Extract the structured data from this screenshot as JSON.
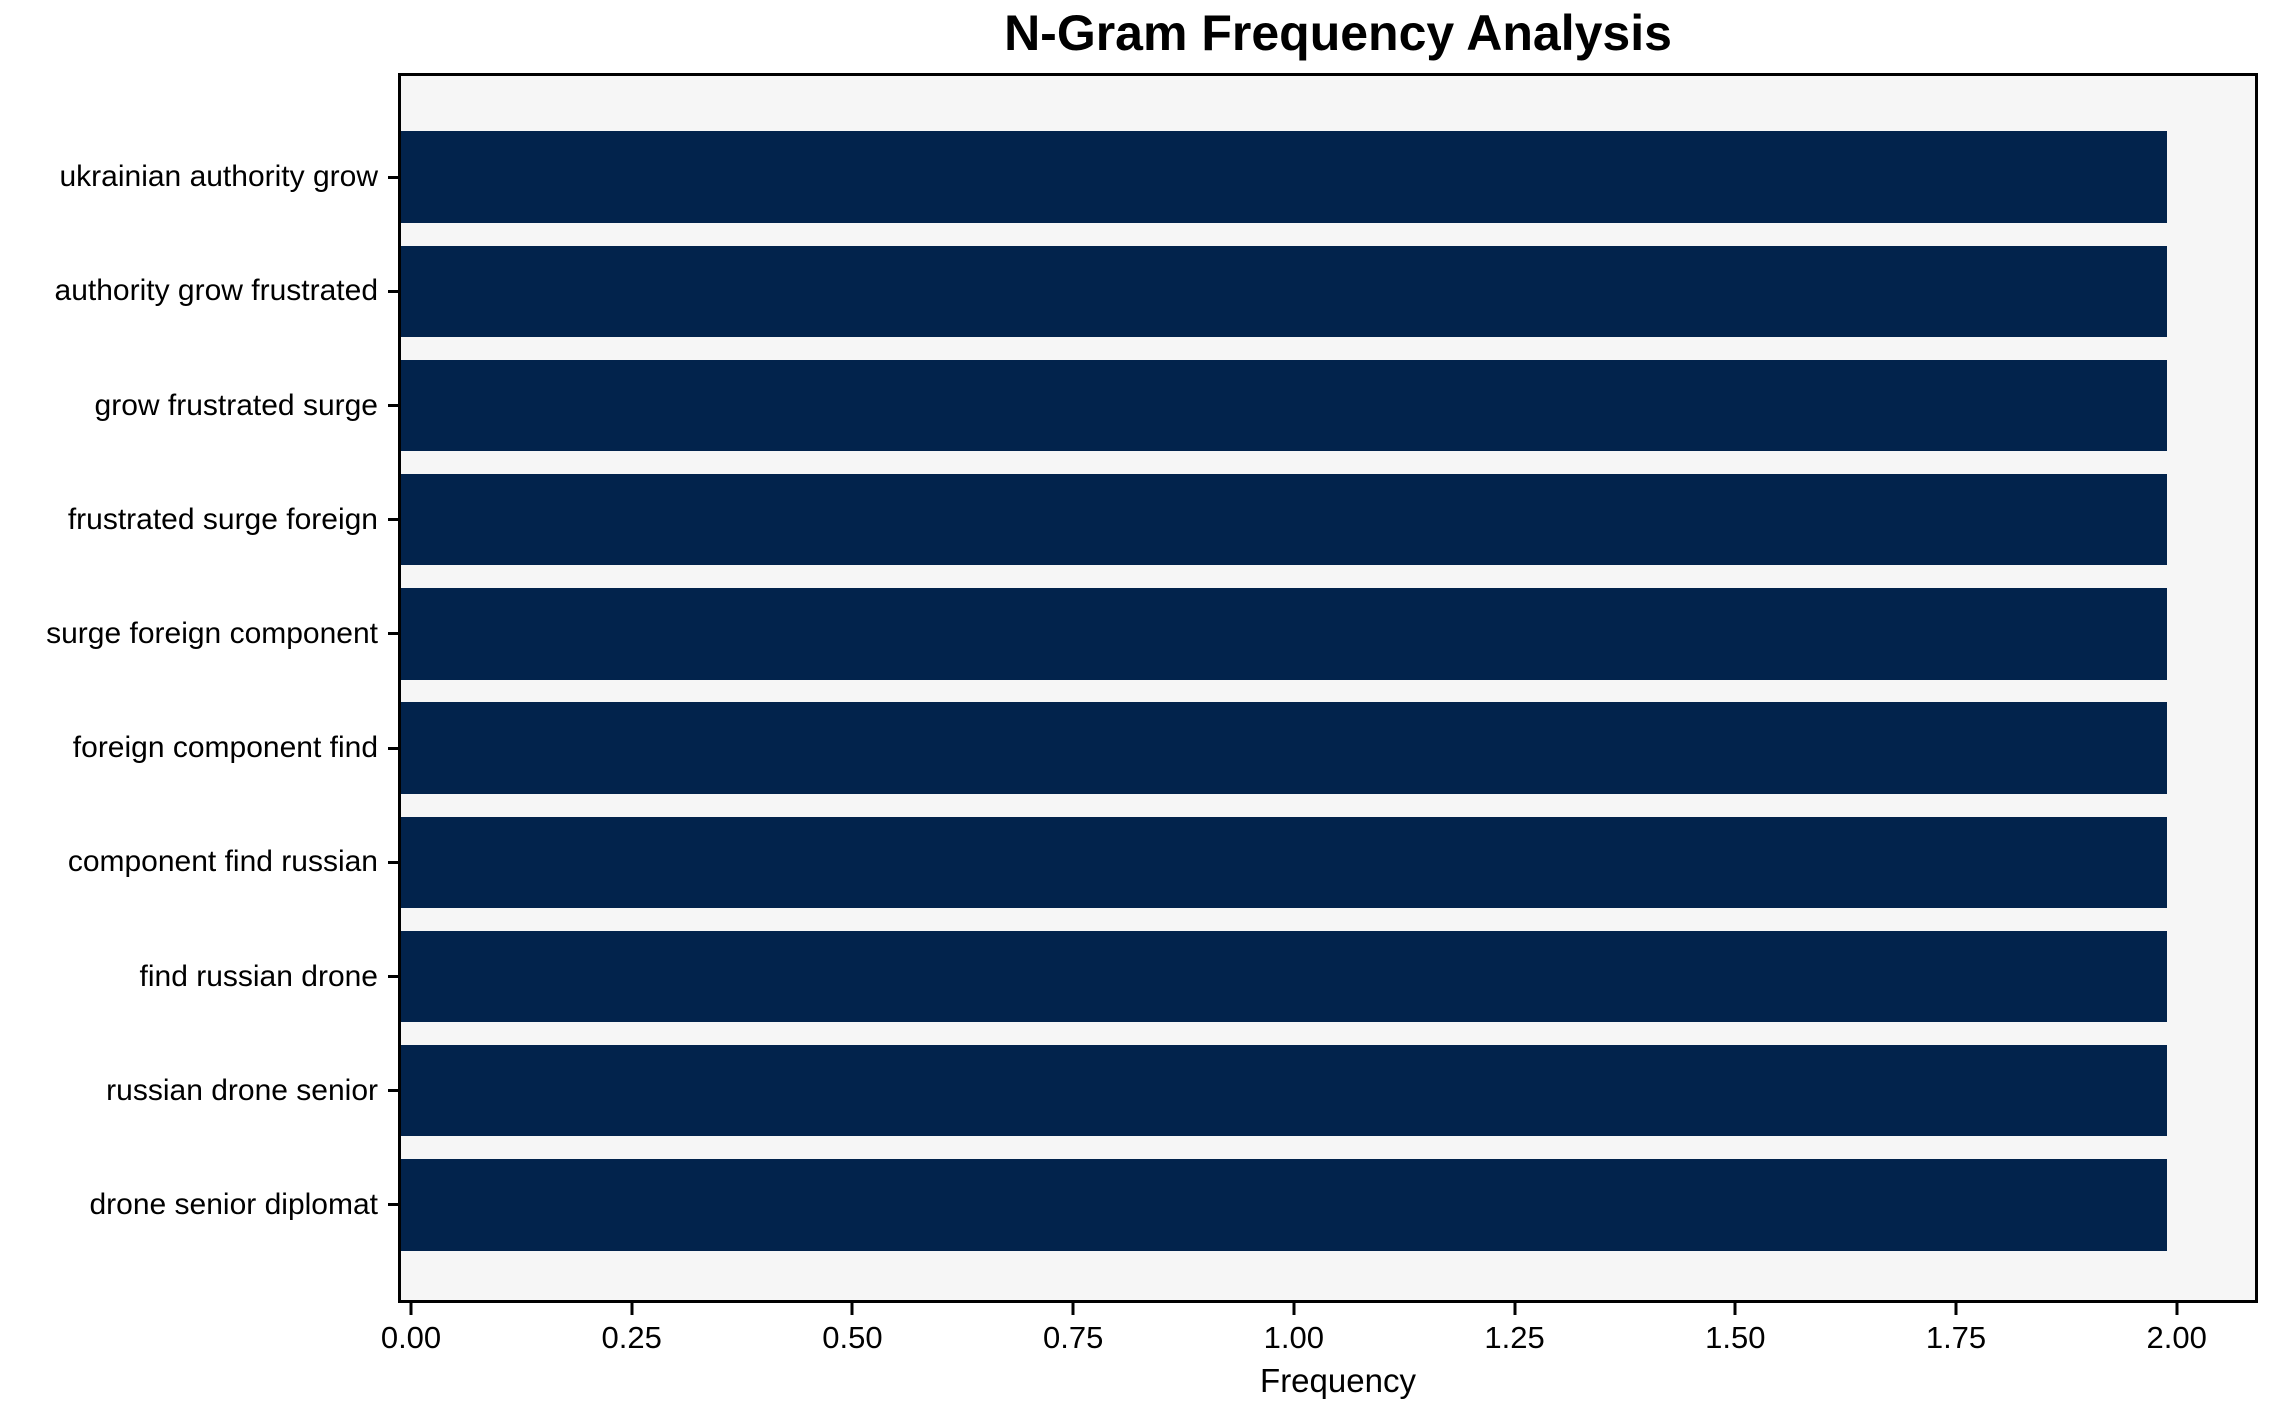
{
  "chart_data": {
    "type": "bar",
    "orientation": "horizontal",
    "title": "N-Gram Frequency Analysis",
    "categories": [
      "ukrainian authority grow",
      "authority grow frustrated",
      "grow frustrated surge",
      "frustrated surge foreign",
      "surge foreign component",
      "foreign component find",
      "component find russian",
      "find russian drone",
      "russian drone senior",
      "drone senior diplomat"
    ],
    "values": [
      2,
      2,
      2,
      2,
      2,
      2,
      2,
      2,
      2,
      2
    ],
    "xlabel": "Frequency",
    "ylabel": "",
    "xlim": [
      0,
      2.1
    ],
    "xticks": [
      "0.00",
      "0.25",
      "0.50",
      "0.75",
      "1.00",
      "1.25",
      "1.50",
      "1.75",
      "2.00"
    ],
    "xtick_values": [
      0,
      0.25,
      0.5,
      0.75,
      1.0,
      1.25,
      1.5,
      1.75,
      2.0
    ],
    "grid": false,
    "legend": null,
    "colors": {
      "bar": "#02234c",
      "plot_background": "#f6f6f6",
      "figure_background": "#ffffff",
      "axis": "#000000",
      "text": "#000000"
    }
  }
}
